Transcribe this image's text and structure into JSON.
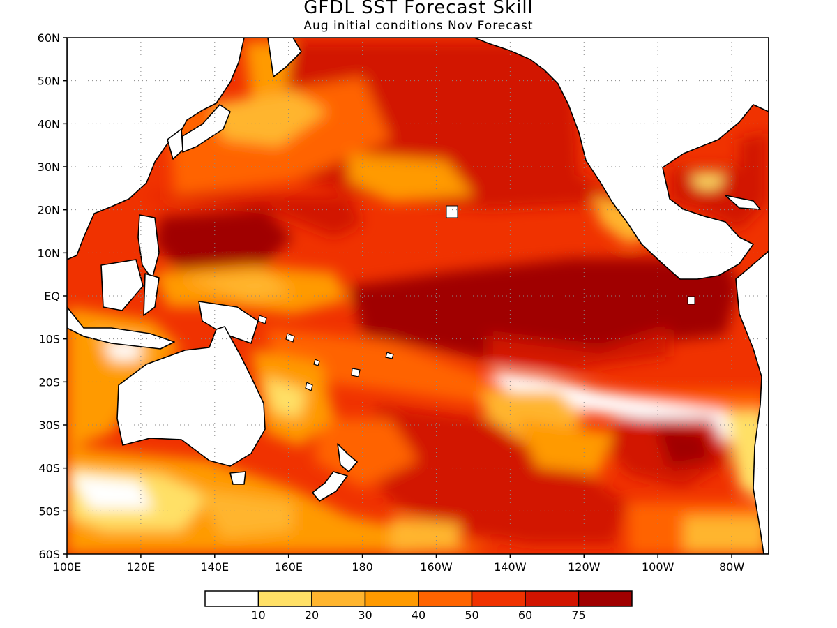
{
  "title": "GFDL SST Forecast Skill",
  "subtitle": "Aug initial conditions   Nov Forecast",
  "map": {
    "lon_range": [
      100,
      290
    ],
    "lat_range": [
      -60,
      60
    ],
    "lat_ticks": [
      {
        "value": 60,
        "label": "60N"
      },
      {
        "value": 50,
        "label": "50N"
      },
      {
        "value": 40,
        "label": "40N"
      },
      {
        "value": 30,
        "label": "30N"
      },
      {
        "value": 20,
        "label": "20N"
      },
      {
        "value": 10,
        "label": "10N"
      },
      {
        "value": 0,
        "label": "EQ"
      },
      {
        "value": -10,
        "label": "10S"
      },
      {
        "value": -20,
        "label": "20S"
      },
      {
        "value": -30,
        "label": "30S"
      },
      {
        "value": -40,
        "label": "40S"
      },
      {
        "value": -50,
        "label": "50S"
      },
      {
        "value": -60,
        "label": "60S"
      }
    ],
    "lon_ticks": [
      {
        "value": 100,
        "label": "100E"
      },
      {
        "value": 120,
        "label": "120E"
      },
      {
        "value": 140,
        "label": "140E"
      },
      {
        "value": 160,
        "label": "160E"
      },
      {
        "value": 180,
        "label": "180"
      },
      {
        "value": 200,
        "label": "160W"
      },
      {
        "value": 220,
        "label": "140W"
      },
      {
        "value": 240,
        "label": "120W"
      },
      {
        "value": 260,
        "label": "100W"
      },
      {
        "value": 280,
        "label": "80W"
      }
    ],
    "gridlines": "dotted"
  },
  "legend": {
    "colors": [
      "#ffffff",
      "#ffe066",
      "#ffb52e",
      "#ff9a00",
      "#ff6400",
      "#f03200",
      "#d21400",
      "#a00000"
    ],
    "labels": [
      "10",
      "20",
      "30",
      "40",
      "50",
      "60",
      "75"
    ]
  },
  "chart_data": {
    "type": "heatmap",
    "title": "GFDL SST Forecast Skill",
    "subtitle": "Aug initial conditions   Nov Forecast",
    "xlabel": "",
    "ylabel": "",
    "xlim": [
      100,
      290
    ],
    "ylim": [
      -60,
      60
    ],
    "levels": [
      10,
      20,
      30,
      40,
      50,
      60,
      75
    ],
    "grid": "on",
    "regions": [
      {
        "lon": [
          185,
          285
        ],
        "lat": [
          -15,
          8
        ],
        "level": "75+"
      },
      {
        "lon": [
          125,
          160
        ],
        "lat": [
          8,
          20
        ],
        "level": "75+"
      },
      {
        "lon": [
          140,
          250
        ],
        "lat": [
          20,
          55
        ],
        "level": "60-75"
      },
      {
        "lon": [
          120,
          175
        ],
        "lat": [
          -12,
          5
        ],
        "level": "30-50"
      },
      {
        "lon": [
          210,
          250
        ],
        "lat": [
          -28,
          -20
        ],
        "level": "0-10"
      },
      {
        "lon": [
          110,
          180
        ],
        "lat": [
          -60,
          -40
        ],
        "level": "10-40"
      },
      {
        "lon": [
          200,
          260
        ],
        "lat": [
          -55,
          -35
        ],
        "level": "60-75"
      }
    ]
  }
}
